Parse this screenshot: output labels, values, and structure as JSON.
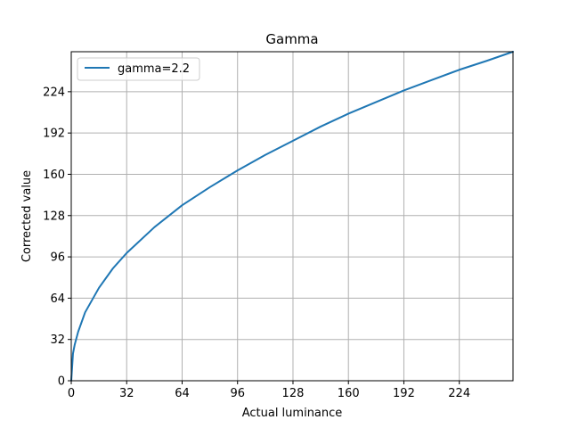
{
  "chart_data": {
    "type": "line",
    "title": "Gamma",
    "xlabel": "Actual luminance",
    "ylabel": "Corrected value",
    "xlim": [
      0,
      255
    ],
    "ylim": [
      0,
      255
    ],
    "xticks": [
      0,
      32,
      64,
      96,
      128,
      160,
      192,
      224
    ],
    "yticks": [
      0,
      32,
      64,
      96,
      128,
      160,
      192,
      224
    ],
    "grid": true,
    "legend_position": "top-left",
    "series": [
      {
        "name": "gamma=2.2",
        "color": "#1f77b4",
        "x": [
          0,
          1,
          2,
          4,
          8,
          16,
          24,
          32,
          48,
          64,
          80,
          96,
          112,
          128,
          144,
          160,
          176,
          192,
          208,
          224,
          240,
          255
        ],
        "y": [
          0,
          21,
          28,
          38,
          53,
          72,
          87,
          99,
          119,
          136,
          150,
          163,
          175,
          186,
          197,
          207,
          216,
          225,
          233,
          241,
          248,
          255
        ]
      }
    ]
  }
}
